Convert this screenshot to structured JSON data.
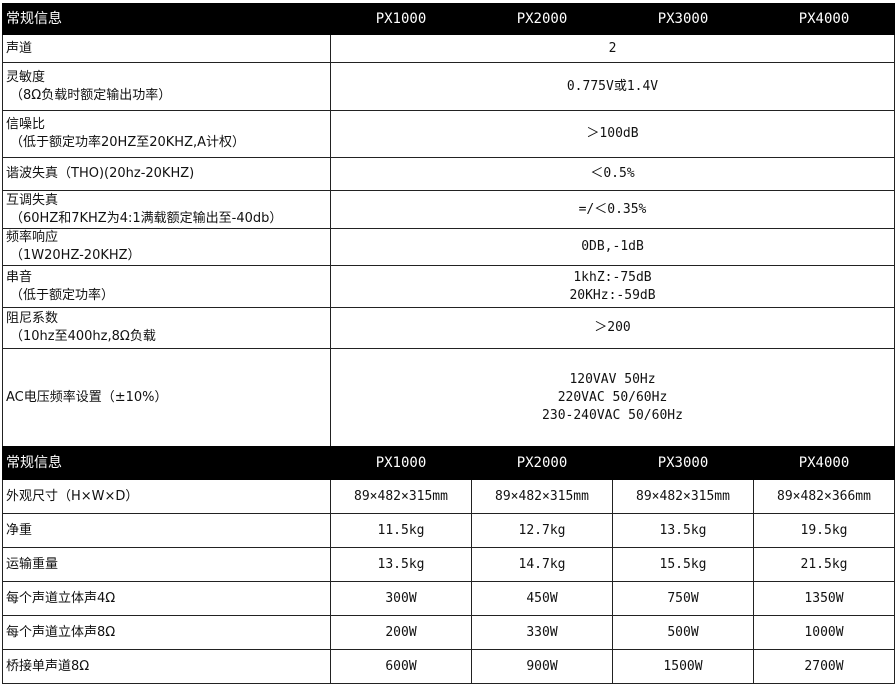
{
  "table1": {
    "header": [
      "常规信息",
      "PX1000",
      "PX2000",
      "PX3000",
      "PX4000"
    ],
    "rows": [
      {
        "label": "声道",
        "sub": "",
        "value": [
          "2"
        ]
      },
      {
        "label": "灵敏度",
        "sub": "（8Ω负载时额定输出功率）",
        "value": [
          "0.775V或1.4V"
        ]
      },
      {
        "label": "信噪比",
        "sub": "（低于额定功率20HZ至20KHZ,A计权）",
        "value": [
          "＞100dB"
        ]
      },
      {
        "label": "谐波失真（THO)(20hz-20KHZ)",
        "sub": "",
        "value": [
          "＜0.5%"
        ]
      },
      {
        "label": "互调失真",
        "sub": "（60HZ和7KHZ为4:1满载额定输出至-40db）",
        "value": [
          "=/＜0.35%"
        ]
      },
      {
        "label": "频率响应",
        "sub": "（1W20HZ-20KHZ）",
        "value": [
          "0DB,-1dB"
        ]
      },
      {
        "label": "串音",
        "sub": "（低于额定功率）",
        "value": [
          "1khZ:-75dB",
          "20KHz:-59dB"
        ]
      },
      {
        "label": "阻尼系数",
        "sub": "（10hz至400hz,8Ω负载",
        "value": [
          "＞200"
        ]
      },
      {
        "label": "AC电压频率设置（±10%）",
        "sub": "",
        "value": [
          "120VAV 50Hz",
          "220VAC 50/60Hz",
          "230-240VAC 50/60Hz"
        ]
      }
    ]
  },
  "table2": {
    "header": [
      "常规信息",
      "PX1000",
      "PX2000",
      "PX3000",
      "PX4000"
    ],
    "rows": [
      {
        "label": "外观尺寸（H×W×D）",
        "values": [
          "89×482×315mm",
          "89×482×315mm",
          "89×482×315mm",
          "89×482×366mm"
        ]
      },
      {
        "label": "净重",
        "values": [
          "11.5kg",
          "12.7kg",
          "13.5kg",
          "19.5kg"
        ]
      },
      {
        "label": "运输重量",
        "values": [
          "13.5kg",
          "14.7kg",
          "15.5kg",
          "21.5kg"
        ]
      },
      {
        "label": "每个声道立体声4Ω",
        "values": [
          "300W",
          "450W",
          "750W",
          "1350W"
        ]
      },
      {
        "label": "每个声道立体声8Ω",
        "values": [
          "200W",
          "330W",
          "500W",
          "1000W"
        ]
      },
      {
        "label": "桥接单声道8Ω",
        "values": [
          "600W",
          "900W",
          "1500W",
          "2700W"
        ]
      }
    ]
  }
}
